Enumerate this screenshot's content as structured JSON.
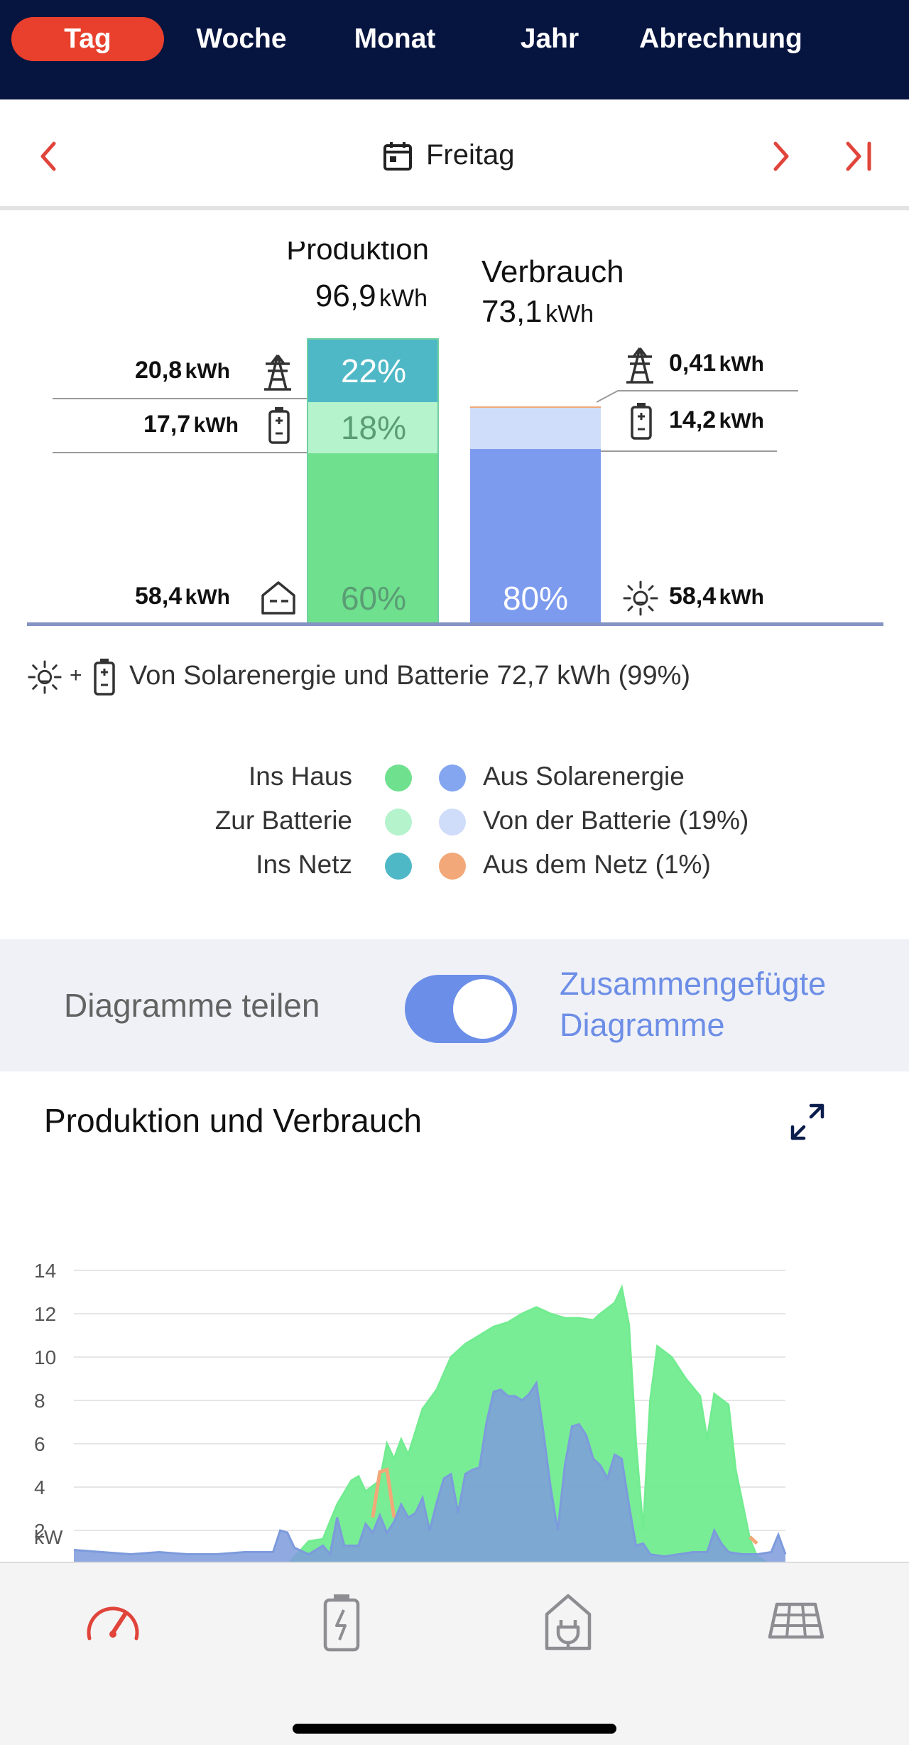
{
  "tabs": [
    {
      "label": "Tag",
      "active": true
    },
    {
      "label": "Woche"
    },
    {
      "label": "Monat"
    },
    {
      "label": "Jahr"
    },
    {
      "label": "Abrechnung"
    }
  ],
  "date_nav": {
    "label": "Freitag"
  },
  "summary": {
    "production": {
      "title": "Produktion",
      "value": "96,9",
      "unit": "kWh"
    },
    "consumption": {
      "title": "Verbrauch",
      "value": "73,1",
      "unit": "kWh"
    },
    "left_rows": [
      {
        "value": "20,8",
        "unit": "kWh",
        "icon": "power-tower-icon"
      },
      {
        "value": "17,7",
        "unit": "kWh",
        "icon": "battery-icon"
      },
      {
        "value": "58,4",
        "unit": "kWh",
        "icon": "house-icon"
      }
    ],
    "right_rows": [
      {
        "value": "0,41",
        "unit": "kWh",
        "icon": "power-tower-icon"
      },
      {
        "value": "14,2",
        "unit": "kWh",
        "icon": "battery-icon"
      },
      {
        "value": "58,4",
        "unit": "kWh",
        "icon": "sun-icon"
      }
    ],
    "production_bar": [
      {
        "label": "22%",
        "share": 0.22,
        "color": "#4fb8c6"
      },
      {
        "label": "18%",
        "share": 0.18,
        "color": "#b4f3cc"
      },
      {
        "label": "60%",
        "share": 0.6,
        "color": "#6fe08e"
      }
    ],
    "consumption_bar": [
      {
        "share": 0.006,
        "color": "#f2a878"
      },
      {
        "share": 0.19,
        "color": "#cfdcfa"
      },
      {
        "label": "80%",
        "share": 0.8,
        "color": "#7d9bee"
      }
    ],
    "self_supply": {
      "prefix": "+",
      "text": "Von Solarenergie und Batterie 72,7 kWh (99%)"
    }
  },
  "legend": {
    "left": [
      {
        "label": "Ins Haus",
        "color": "#6fe08e"
      },
      {
        "label": "Zur Batterie",
        "color": "#b4f3cc"
      },
      {
        "label": "Ins Netz",
        "color": "#4fb8c6"
      }
    ],
    "right": [
      {
        "label": "Aus Solarenergie",
        "color": "#84a6f0"
      },
      {
        "label": "Von der Batterie (19%)",
        "color": "#cfdcfa"
      },
      {
        "label": "Aus dem Netz (1%)",
        "color": "#f2a878"
      }
    ]
  },
  "toggle": {
    "label": "Diagramme teilen",
    "on": true,
    "merged_label": "Zusammengefügte Diagramme"
  },
  "chart": {
    "title": "Produktion und Verbrauch",
    "y_unit": "kW"
  },
  "chart_data": {
    "type": "area",
    "title": "Produktion und Verbrauch",
    "ylabel": "kW",
    "yticks": [
      2,
      4,
      6,
      8,
      10,
      12,
      14
    ],
    "ylim": [
      0,
      14
    ],
    "x_range": [
      0,
      100
    ],
    "series": [
      {
        "color": "#72ec90",
        "points": [
          [
            28,
            0
          ],
          [
            30,
            0.4
          ],
          [
            33,
            1.5
          ],
          [
            35,
            1.6
          ],
          [
            37,
            3.2
          ],
          [
            39,
            4.3
          ],
          [
            40,
            4.5
          ],
          [
            41,
            3.8
          ],
          [
            43,
            4.3
          ],
          [
            44,
            6
          ],
          [
            45,
            5.3
          ],
          [
            46,
            6.2
          ],
          [
            47,
            5.5
          ],
          [
            49,
            7.6
          ],
          [
            51,
            8.5
          ],
          [
            53,
            10
          ],
          [
            55,
            10.6
          ],
          [
            57,
            11
          ],
          [
            59,
            11.4
          ],
          [
            61,
            11.6
          ],
          [
            63,
            12
          ],
          [
            65,
            12.3
          ],
          [
            67,
            12
          ],
          [
            69,
            11.8
          ],
          [
            71,
            11.8
          ],
          [
            73,
            11.7
          ],
          [
            74,
            12
          ],
          [
            76,
            12.5
          ],
          [
            77,
            13.2
          ],
          [
            78,
            11.5
          ],
          [
            79,
            6
          ],
          [
            80,
            2
          ],
          [
            81,
            8
          ],
          [
            82,
            10.5
          ],
          [
            84,
            10
          ],
          [
            86,
            9
          ],
          [
            88,
            8.2
          ],
          [
            89,
            6.2
          ],
          [
            90,
            8.3
          ],
          [
            92,
            7.8
          ],
          [
            93,
            4.8
          ],
          [
            94,
            3.2
          ],
          [
            95,
            1.6
          ],
          [
            96,
            0.8
          ],
          [
            98,
            0.4
          ],
          [
            100,
            0
          ]
        ]
      },
      {
        "color": "#f2a878",
        "points": [
          [
            42,
            2.6
          ],
          [
            43,
            4.7
          ],
          [
            44,
            4.8
          ],
          [
            45,
            2.6
          ],
          [
            95,
            1.7
          ],
          [
            96,
            1.4
          ]
        ]
      },
      {
        "color": "#7d9bdc",
        "points": [
          [
            0,
            1.1
          ],
          [
            4,
            1
          ],
          [
            8,
            0.9
          ],
          [
            12,
            1
          ],
          [
            16,
            0.9
          ],
          [
            20,
            0.9
          ],
          [
            24,
            1
          ],
          [
            28,
            1
          ],
          [
            29,
            2
          ],
          [
            30,
            1.9
          ],
          [
            31,
            1.2
          ],
          [
            33,
            0.9
          ],
          [
            35,
            1.3
          ],
          [
            36,
            0.9
          ],
          [
            37,
            2.6
          ],
          [
            38,
            1.3
          ],
          [
            40,
            1.3
          ],
          [
            41,
            2.3
          ],
          [
            42,
            1.9
          ],
          [
            43,
            2.7
          ],
          [
            44,
            1.9
          ],
          [
            45,
            2.4
          ],
          [
            46,
            3.2
          ],
          [
            47,
            2.6
          ],
          [
            48,
            2.8
          ],
          [
            49,
            3.5
          ],
          [
            50,
            2
          ],
          [
            51,
            3.3
          ],
          [
            52,
            4.4
          ],
          [
            53,
            4.6
          ],
          [
            54,
            2.8
          ],
          [
            55,
            4.6
          ],
          [
            56,
            4.8
          ],
          [
            57,
            4.9
          ],
          [
            58,
            7
          ],
          [
            59,
            8.4
          ],
          [
            60,
            8.5
          ],
          [
            61,
            8.2
          ],
          [
            62,
            8.2
          ],
          [
            63,
            8
          ],
          [
            64,
            8.3
          ],
          [
            65,
            8.8
          ],
          [
            66,
            6.5
          ],
          [
            67,
            4
          ],
          [
            68,
            2
          ],
          [
            69,
            5
          ],
          [
            70,
            6.8
          ],
          [
            71,
            6.9
          ],
          [
            72,
            6.4
          ],
          [
            73,
            5.3
          ],
          [
            74,
            5
          ],
          [
            75,
            4.4
          ],
          [
            76,
            5.5
          ],
          [
            77,
            5.3
          ],
          [
            78,
            3.2
          ],
          [
            79,
            1.3
          ],
          [
            80,
            1.4
          ],
          [
            81,
            0.9
          ],
          [
            83,
            0.8
          ],
          [
            85,
            0.9
          ],
          [
            87,
            1
          ],
          [
            89,
            1
          ],
          [
            90,
            2
          ],
          [
            91,
            1.4
          ],
          [
            92,
            1
          ],
          [
            94,
            0.9
          ],
          [
            96,
            0.9
          ],
          [
            98,
            1
          ],
          [
            99,
            1.8
          ],
          [
            100,
            0.9
          ]
        ]
      }
    ]
  }
}
